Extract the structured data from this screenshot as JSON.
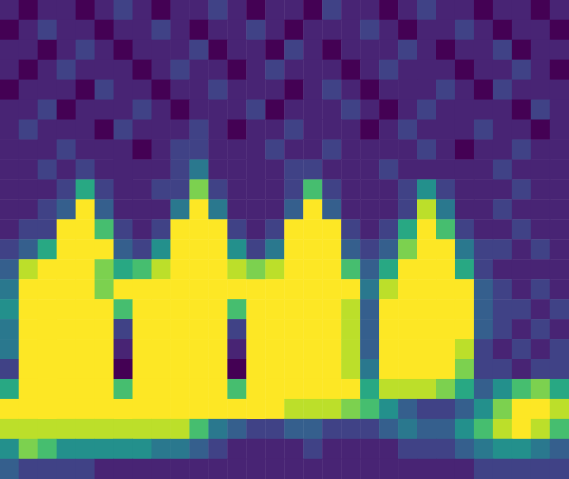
{
  "chart_data": {
    "type": "heatmap",
    "tick_labels": false,
    "zlim": [
      0,
      10
    ],
    "z": [
      [
        1,
        0,
        1,
        1,
        0,
        1,
        2,
        1,
        0,
        1,
        1,
        2,
        1,
        0,
        1,
        1,
        0,
        2,
        1,
        1,
        0,
        1,
        2,
        1,
        1,
        0,
        1,
        1,
        0,
        1
      ],
      [
        0,
        1,
        2,
        1,
        1,
        0,
        1,
        1,
        2,
        1,
        0,
        1,
        1,
        2,
        1,
        0,
        1,
        1,
        1,
        2,
        1,
        0,
        1,
        1,
        2,
        1,
        0,
        1,
        1,
        0
      ],
      [
        1,
        1,
        0,
        1,
        2,
        1,
        0,
        1,
        1,
        1,
        2,
        0,
        1,
        1,
        0,
        2,
        1,
        0,
        1,
        1,
        1,
        2,
        1,
        0,
        1,
        1,
        2,
        0,
        1,
        1
      ],
      [
        1,
        0,
        1,
        2,
        1,
        1,
        1,
        0,
        1,
        2,
        1,
        1,
        0,
        1,
        2,
        1,
        1,
        1,
        0,
        1,
        2,
        1,
        1,
        1,
        0,
        1,
        1,
        2,
        1,
        0
      ],
      [
        0,
        1,
        1,
        1,
        0,
        2,
        1,
        1,
        0,
        1,
        1,
        2,
        1,
        1,
        1,
        0,
        1,
        2,
        1,
        0,
        1,
        1,
        1,
        2,
        1,
        0,
        2,
        1,
        1,
        1
      ],
      [
        1,
        1,
        2,
        0,
        1,
        1,
        1,
        2,
        1,
        0,
        1,
        1,
        1,
        2,
        0,
        1,
        1,
        1,
        2,
        1,
        0,
        1,
        2,
        1,
        1,
        1,
        1,
        0,
        2,
        1
      ],
      [
        1,
        2,
        1,
        1,
        1,
        0,
        2,
        1,
        1,
        1,
        2,
        1,
        0,
        1,
        1,
        2,
        1,
        1,
        1,
        0,
        1,
        2,
        1,
        1,
        1,
        2,
        1,
        1,
        0,
        1
      ],
      [
        1,
        1,
        1,
        2,
        1,
        1,
        1,
        0,
        1,
        2,
        2,
        1,
        1,
        1,
        2,
        1,
        1,
        2,
        1,
        1,
        1,
        1,
        2,
        1,
        0,
        1,
        1,
        2,
        1,
        1
      ],
      [
        1,
        1,
        2,
        1,
        2,
        1,
        1,
        1,
        1,
        2,
        4,
        1,
        1,
        1,
        1,
        2,
        2,
        1,
        1,
        1,
        2,
        1,
        1,
        1,
        1,
        1,
        2,
        1,
        1,
        1
      ],
      [
        1,
        1,
        1,
        2,
        6,
        2,
        1,
        1,
        2,
        2,
        8,
        2,
        1,
        1,
        1,
        2,
        7,
        2,
        1,
        1,
        1,
        2,
        5,
        2,
        1,
        1,
        1,
        2,
        1,
        1
      ],
      [
        1,
        1,
        2,
        3,
        10,
        3,
        1,
        1,
        1,
        4,
        10,
        4,
        1,
        1,
        1,
        3,
        10,
        3,
        1,
        1,
        1,
        2,
        9,
        4,
        1,
        1,
        2,
        1,
        1,
        1
      ],
      [
        1,
        2,
        2,
        10,
        10,
        7,
        2,
        1,
        2,
        10,
        10,
        10,
        2,
        1,
        2,
        10,
        10,
        10,
        2,
        1,
        2,
        6,
        10,
        7,
        2,
        1,
        1,
        2,
        1,
        1
      ],
      [
        2,
        3,
        6,
        10,
        10,
        10,
        3,
        2,
        5,
        10,
        10,
        10,
        5,
        2,
        4,
        10,
        10,
        10,
        3,
        2,
        3,
        8,
        10,
        10,
        4,
        2,
        2,
        1,
        2,
        1
      ],
      [
        3,
        9,
        10,
        10,
        10,
        8,
        6,
        7,
        9,
        10,
        10,
        10,
        9,
        8,
        9,
        10,
        10,
        10,
        7,
        3,
        6,
        10,
        10,
        10,
        6,
        2,
        1,
        1,
        1,
        1
      ],
      [
        4,
        10,
        10,
        10,
        10,
        8,
        10,
        10,
        10,
        10,
        10,
        10,
        10,
        10,
        10,
        10,
        10,
        10,
        10,
        4,
        9,
        10,
        10,
        10,
        10,
        3,
        2,
        1,
        2,
        1
      ],
      [
        5,
        10,
        10,
        10,
        10,
        10,
        7,
        10,
        10,
        10,
        10,
        10,
        7,
        10,
        10,
        10,
        10,
        10,
        9,
        3,
        10,
        10,
        10,
        10,
        10,
        3,
        2,
        2,
        1,
        2
      ],
      [
        4,
        10,
        10,
        10,
        10,
        10,
        2,
        10,
        10,
        10,
        10,
        10,
        2,
        10,
        10,
        10,
        10,
        10,
        9,
        3,
        10,
        10,
        10,
        10,
        10,
        3,
        2,
        1,
        2,
        1
      ],
      [
        4,
        10,
        10,
        10,
        10,
        10,
        1,
        10,
        10,
        10,
        10,
        10,
        1,
        10,
        10,
        10,
        10,
        10,
        9,
        3,
        10,
        10,
        10,
        10,
        9,
        2,
        1,
        2,
        1,
        2
      ],
      [
        2,
        10,
        10,
        10,
        10,
        10,
        0,
        10,
        10,
        10,
        10,
        10,
        0,
        10,
        10,
        10,
        10,
        10,
        9,
        4,
        10,
        10,
        10,
        10,
        8,
        2,
        2,
        1,
        2,
        2
      ],
      [
        6,
        10,
        10,
        10,
        10,
        10,
        7,
        10,
        10,
        10,
        10,
        10,
        7,
        10,
        10,
        10,
        10,
        10,
        10,
        6,
        9,
        9,
        9,
        8,
        6,
        3,
        5,
        7,
        8,
        6
      ],
      [
        10,
        10,
        10,
        10,
        10,
        10,
        10,
        10,
        10,
        10,
        10,
        10,
        10,
        10,
        10,
        9,
        9,
        9,
        8,
        7,
        5,
        3,
        2,
        2,
        3,
        5,
        8,
        10,
        10,
        9
      ],
      [
        9,
        9,
        9,
        9,
        9,
        9,
        9,
        9,
        9,
        9,
        7,
        4,
        3,
        2,
        2,
        3,
        3,
        2,
        2,
        2,
        3,
        4,
        3,
        3,
        5,
        7,
        9,
        10,
        9,
        7
      ],
      [
        5,
        8,
        7,
        5,
        5,
        5,
        5,
        5,
        4,
        4,
        3,
        2,
        1,
        1,
        1,
        1,
        2,
        1,
        1,
        1,
        1,
        2,
        2,
        2,
        3,
        4,
        5,
        5,
        4,
        3
      ],
      [
        3,
        2,
        2,
        2,
        2,
        1,
        1,
        1,
        1,
        1,
        1,
        1,
        1,
        1,
        1,
        1,
        1,
        1,
        1,
        1,
        1,
        1,
        1,
        1,
        1,
        2,
        2,
        2,
        2,
        2
      ]
    ]
  }
}
